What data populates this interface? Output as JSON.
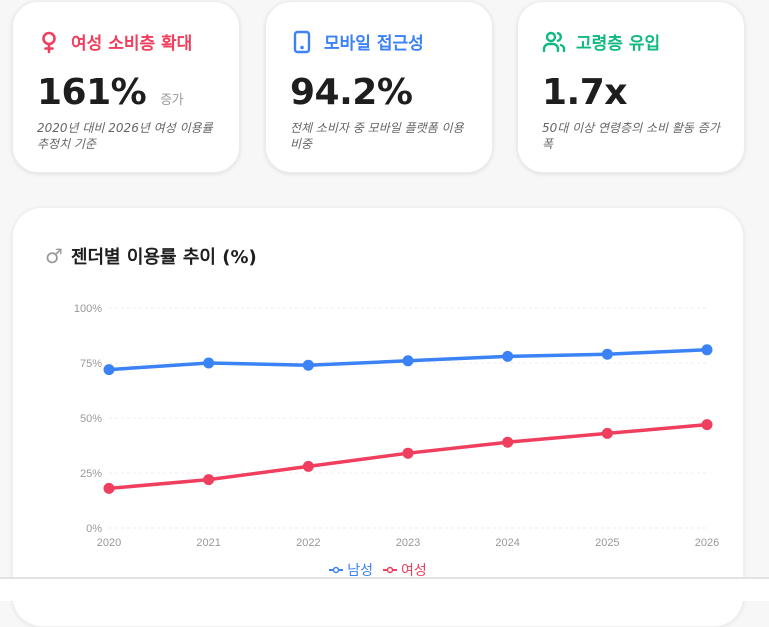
{
  "colors": {
    "female": "#f03e5e",
    "mobile": "#3b82f6",
    "senior": "#10b981",
    "male_line": "#3b82f6",
    "female_line": "#f03e5e"
  },
  "cards": [
    {
      "icon": "female-icon",
      "title": "여성 소비층 확대",
      "value": "161%",
      "suffix": "증가",
      "desc": "2020년 대비 2026년 여성 이용률 추정치 기준"
    },
    {
      "icon": "smartphone-icon",
      "title": "모바일 접근성",
      "value": "94.2%",
      "suffix": "",
      "desc": "전체 소비자 중 모바일 플랫폼 이용 비중"
    },
    {
      "icon": "users-icon",
      "title": "고령층 유입",
      "value": "1.7x",
      "suffix": "",
      "desc": "50대 이상 연령층의 소비 활동 증가폭"
    }
  ],
  "chart": {
    "title": "젠더별 이용률 추이 (%)",
    "title_icon": "male-icon"
  },
  "chart_data": {
    "type": "line",
    "title": "젠더별 이용률 추이 (%)",
    "x": [
      "2020",
      "2021",
      "2022",
      "2023",
      "2024",
      "2025",
      "2026"
    ],
    "series": [
      {
        "name": "남성",
        "color": "#3b82f6",
        "values": [
          72,
          75,
          74,
          76,
          78,
          79,
          81
        ]
      },
      {
        "name": "여성",
        "color": "#f03e5e",
        "values": [
          18,
          22,
          28,
          34,
          39,
          43,
          47
        ]
      }
    ],
    "yticks": [
      "0%",
      "25%",
      "50%",
      "75%",
      "100%"
    ],
    "ylim": [
      0,
      100
    ],
    "xlabel": "",
    "ylabel": "",
    "grid": true,
    "legend_position": "bottom"
  }
}
